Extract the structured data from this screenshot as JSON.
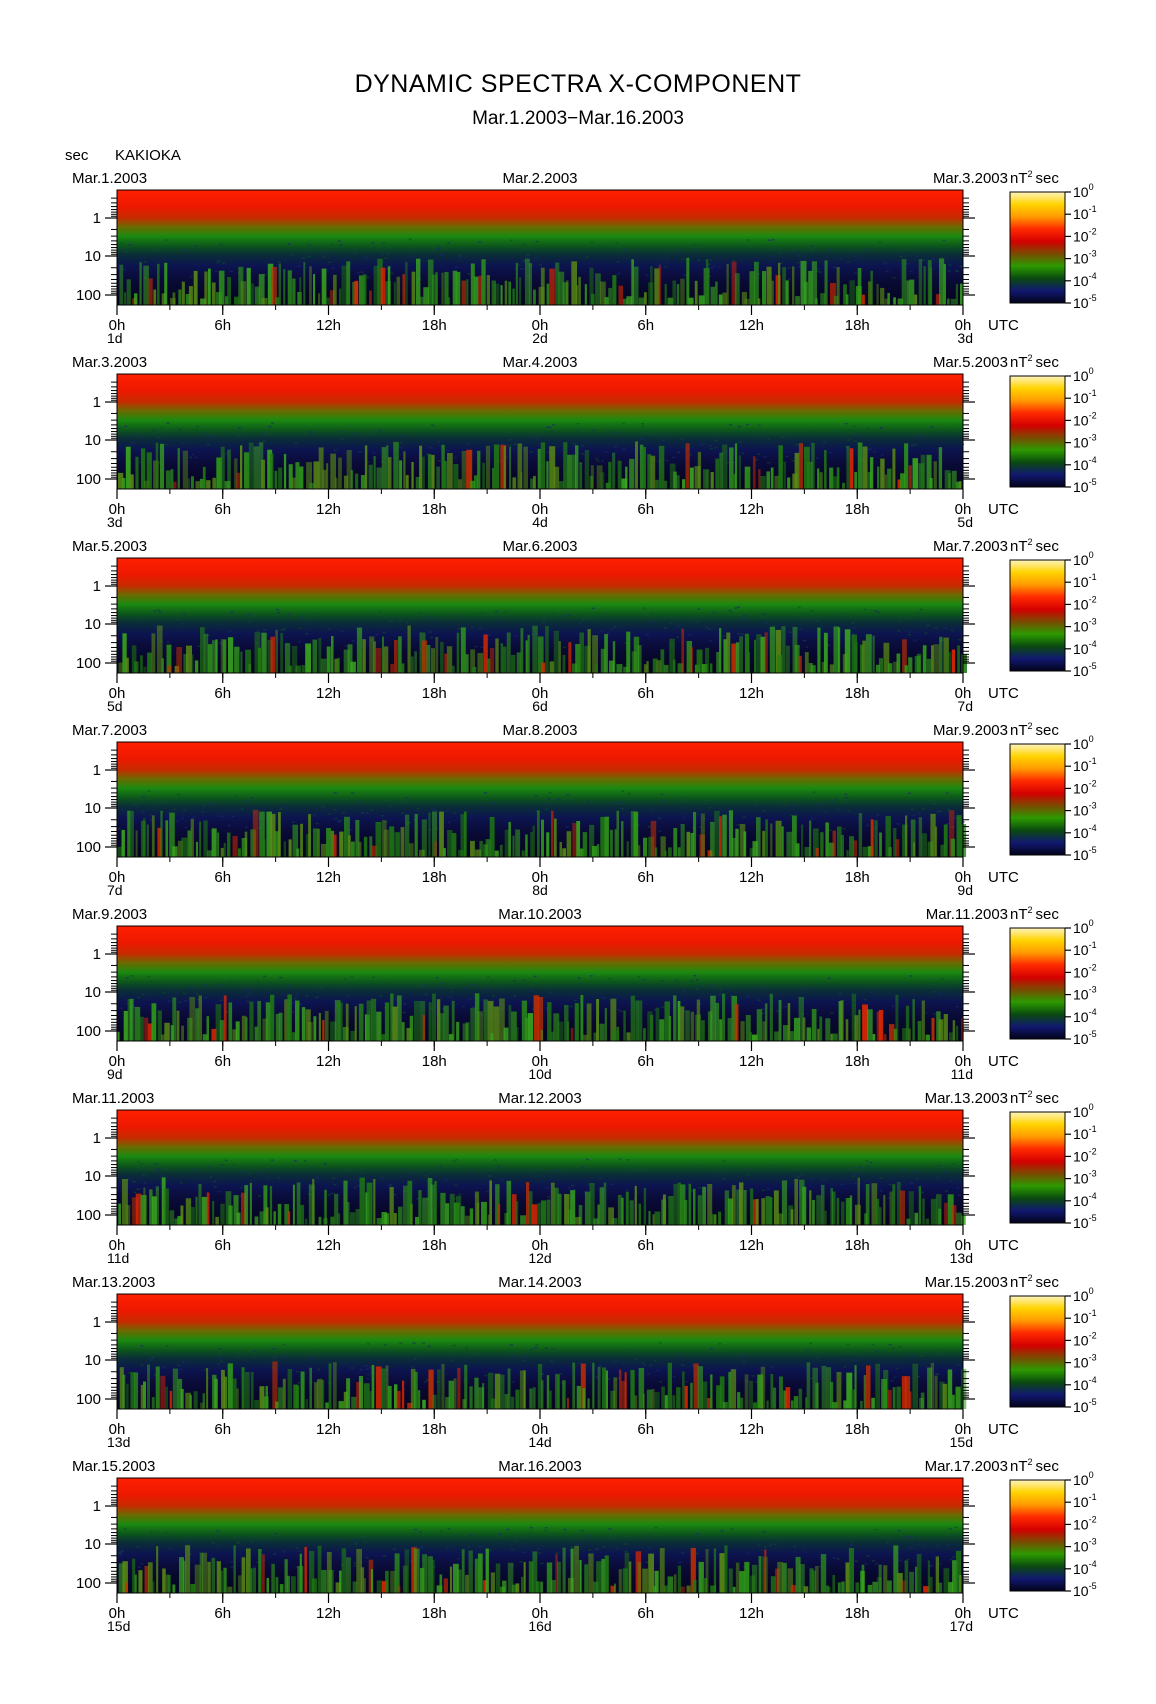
{
  "title": "DYNAMIC SPECTRA X-COMPONENT",
  "subtitle": "Mar.1.2003−Mar.16.2003",
  "y_unit": "sec",
  "station": "KAKIOKA",
  "colorbar": {
    "unit_label": "nT",
    "unit_sup": "2",
    "unit_suffix": "sec",
    "levels": [
      {
        "base": "10",
        "exp": "0"
      },
      {
        "base": "10",
        "exp": "-1"
      },
      {
        "base": "10",
        "exp": "-2"
      },
      {
        "base": "10",
        "exp": "-3"
      },
      {
        "base": "10",
        "exp": "-4"
      },
      {
        "base": "10",
        "exp": "-5"
      }
    ],
    "colors": [
      "#fff4c0",
      "#ffd400",
      "#ff9a00",
      "#ff2a00",
      "#d40000",
      "#7a4a00",
      "#2c9a00",
      "#0a4a10",
      "#101870",
      "#03031a"
    ]
  },
  "x_tick_labels": [
    "0h",
    "6h",
    "12h",
    "18h",
    "0h",
    "6h",
    "12h",
    "18h",
    "0h"
  ],
  "utc_label": "UTC",
  "y_tick_labels": [
    "1",
    "10",
    "100"
  ],
  "panels": [
    {
      "start": "Mar.1.2003",
      "mid": "Mar.2.2003",
      "end": "Mar.3.2003",
      "day_labels": [
        "1d",
        "2d",
        "3d"
      ]
    },
    {
      "start": "Mar.3.2003",
      "mid": "Mar.4.2003",
      "end": "Mar.5.2003",
      "day_labels": [
        "3d",
        "4d",
        "5d"
      ]
    },
    {
      "start": "Mar.5.2003",
      "mid": "Mar.6.2003",
      "end": "Mar.7.2003",
      "day_labels": [
        "5d",
        "6d",
        "7d"
      ]
    },
    {
      "start": "Mar.7.2003",
      "mid": "Mar.8.2003",
      "end": "Mar.9.2003",
      "day_labels": [
        "7d",
        "8d",
        "9d"
      ]
    },
    {
      "start": "Mar.9.2003",
      "mid": "Mar.10.2003",
      "end": "Mar.11.2003",
      "day_labels": [
        "9d",
        "10d",
        "11d"
      ]
    },
    {
      "start": "Mar.11.2003",
      "mid": "Mar.12.2003",
      "end": "Mar.13.2003",
      "day_labels": [
        "11d",
        "12d",
        "13d"
      ]
    },
    {
      "start": "Mar.13.2003",
      "mid": "Mar.14.2003",
      "end": "Mar.15.2003",
      "day_labels": [
        "13d",
        "14d",
        "15d"
      ]
    },
    {
      "start": "Mar.15.2003",
      "mid": "Mar.16.2003",
      "end": "Mar.17.2003",
      "day_labels": [
        "15d",
        "16d",
        "17d"
      ]
    }
  ],
  "chart_data": {
    "type": "heatmap",
    "title": "DYNAMIC SPECTRA X-COMPONENT",
    "subtitle": "Mar.1.2003−Mar.16.2003",
    "ylabel": "sec",
    "y_scale": "log",
    "y_axis_inverted": true,
    "y_ticks": [
      1,
      10,
      100
    ],
    "x_ticks_hours": [
      "0h",
      "6h",
      "12h",
      "18h",
      "0h",
      "6h",
      "12h",
      "18h",
      "0h"
    ],
    "x_unit": "UTC",
    "color_unit": "nT^2 sec",
    "color_scale": "log",
    "color_range": [
      1e-05,
      1
    ],
    "color_ticks": [
      1,
      0.1,
      0.01,
      0.001,
      0.0001,
      1e-05
    ],
    "panel_count": 8,
    "panel_span_days": 2,
    "grid": false,
    "legend": "colorbar right of each panel"
  }
}
